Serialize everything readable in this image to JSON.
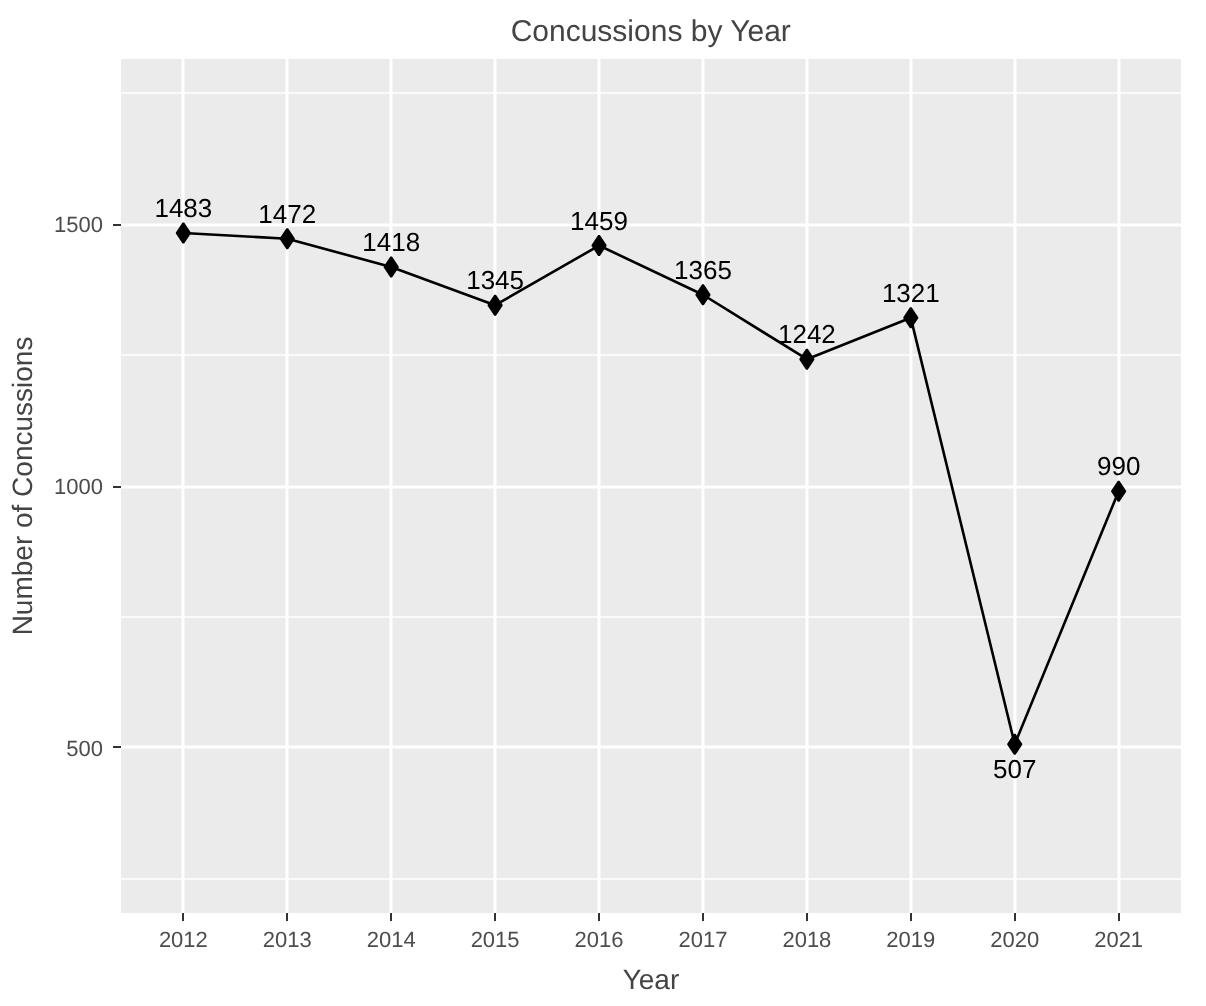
{
  "chart_data": {
    "type": "line",
    "title": "Concussions by Year",
    "xlabel": "Year",
    "ylabel": "Number of Concussions",
    "x": [
      2012,
      2013,
      2014,
      2015,
      2016,
      2017,
      2018,
      2019,
      2020,
      2021
    ],
    "series": [
      {
        "color": "#000000",
        "values": [
          1483,
          1472,
          1418,
          1345,
          1459,
          1365,
          1242,
          1321,
          507,
          990
        ]
      }
    ],
    "xlim": [
      2011.4,
      2021.6
    ],
    "ylim": [
      185,
      1815
    ],
    "xticks": [
      2012,
      2013,
      2014,
      2015,
      2016,
      2017,
      2018,
      2019,
      2020,
      2021
    ],
    "yticks": [
      500,
      1000,
      1500
    ],
    "grid": true,
    "marker": "diamond",
    "line_style": "solid",
    "data_labels": true
  }
}
